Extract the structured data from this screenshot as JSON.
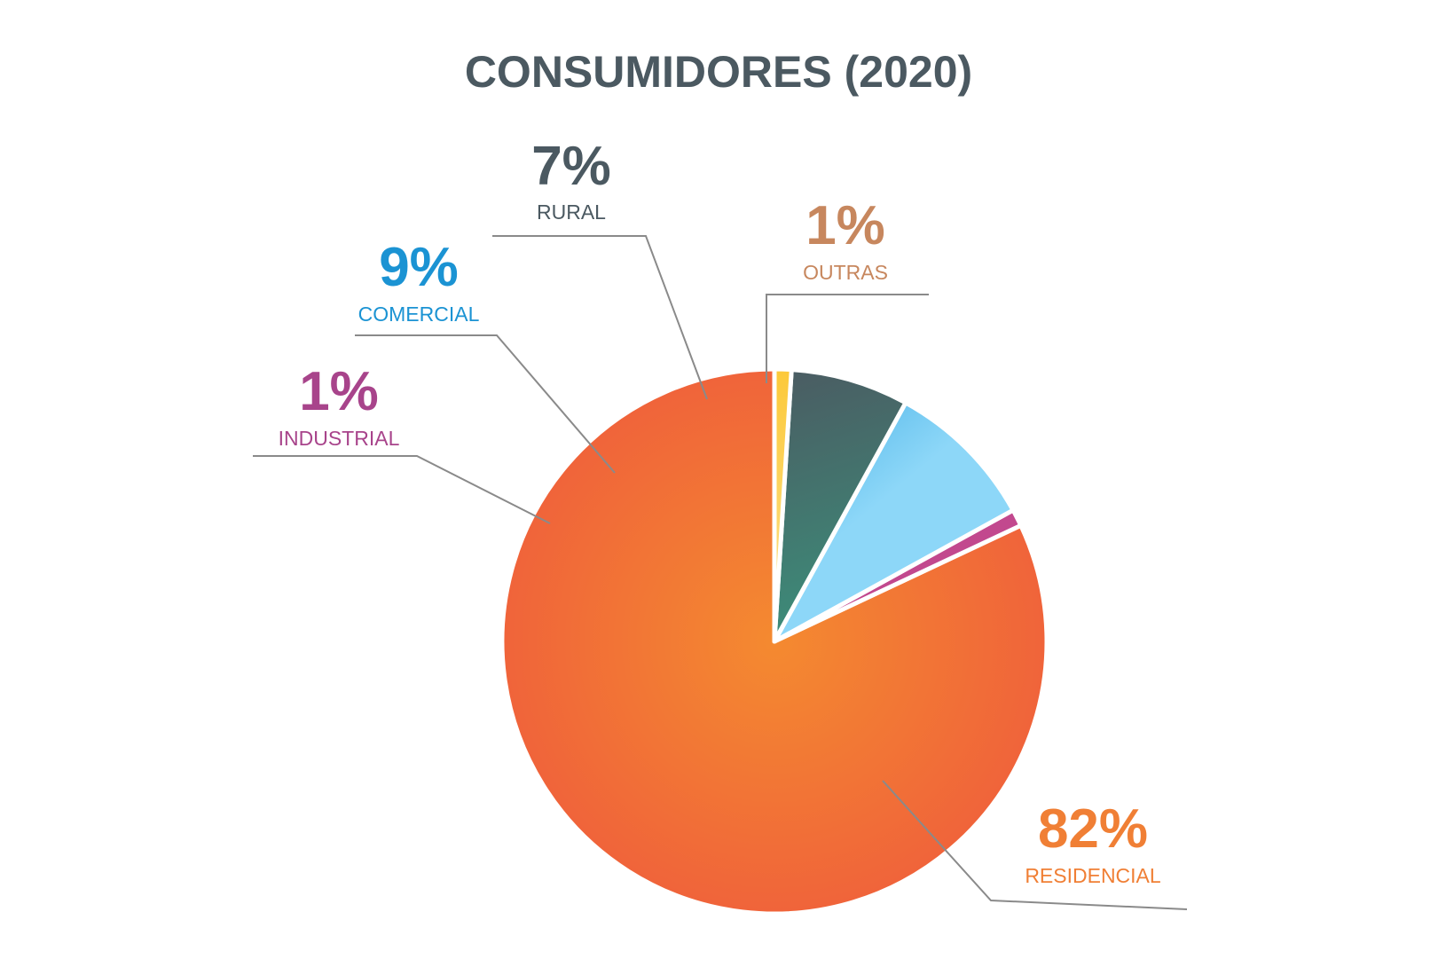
{
  "chart_data": {
    "type": "pie",
    "title": "CONSUMIDORES (2020)",
    "title_color": "#4b5961",
    "start": "top",
    "direction": "counterclockwise",
    "slices": [
      {
        "label": "RESIDENCIAL",
        "pct_label": "82%",
        "value": 82,
        "color": "#f26b3a",
        "label_color": "#f07f35"
      },
      {
        "label": "INDUSTRIAL",
        "pct_label": "1%",
        "value": 1,
        "color": "#b83d8a",
        "label_color": "#a8448b"
      },
      {
        "label": "COMERCIAL",
        "pct_label": "9%",
        "value": 9,
        "color": "#1e9cdc",
        "label_color": "#1b93d3"
      },
      {
        "label": "RURAL",
        "pct_label": "7%",
        "value": 7,
        "color": "#4a5860",
        "label_color": "#4b5961"
      },
      {
        "label": "OUTRAS",
        "pct_label": "1%",
        "value": 1,
        "color": "#fcc940",
        "label_color": "#c7875e"
      }
    ],
    "leader_line_color": "#8a8a8a"
  }
}
